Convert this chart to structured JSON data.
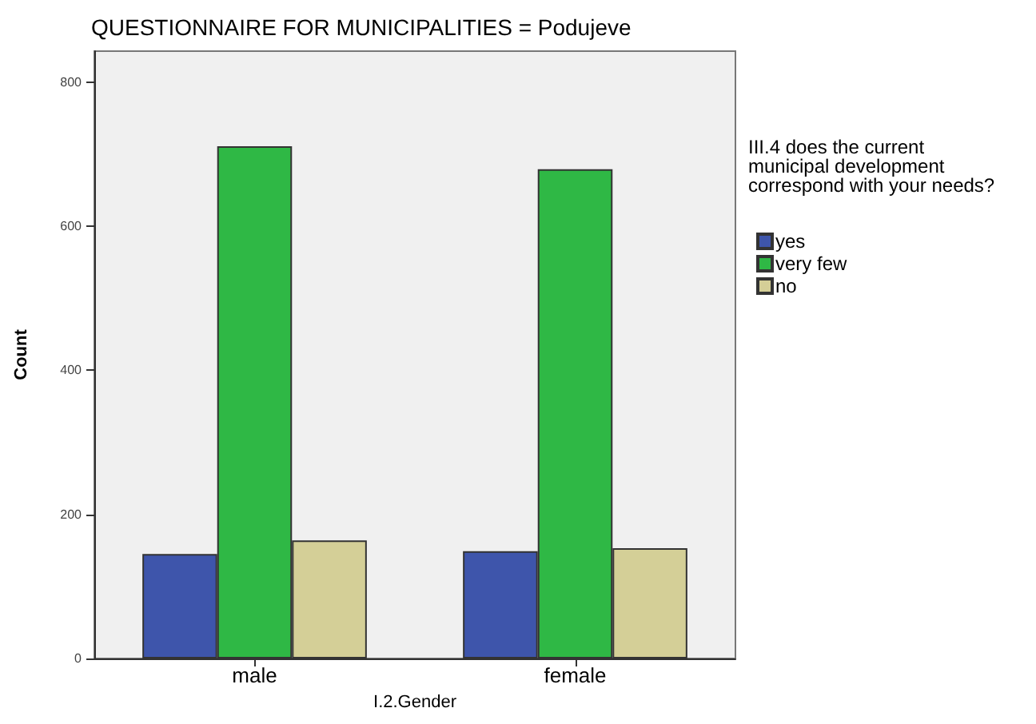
{
  "chart_data": {
    "type": "bar",
    "title": "QUESTIONNAIRE FOR MUNICIPALITIES = Podujeve",
    "xlabel": "I.2.Gender",
    "ylabel": "Count",
    "legend_title": "III.4 does the current\nmunicipal development\ncorrespond with your needs?",
    "categories": [
      "male",
      "female"
    ],
    "series": [
      {
        "name": "yes",
        "color": "#3e55ab",
        "values": [
          145,
          149
        ]
      },
      {
        "name": "very few",
        "color": "#2fb845",
        "values": [
          711,
          679
        ]
      },
      {
        "name": "no",
        "color": "#d4cf97",
        "values": [
          164,
          153
        ]
      }
    ],
    "ylim": [
      0,
      843
    ],
    "yticks": [
      0,
      200,
      400,
      600,
      800
    ],
    "grid": false,
    "legend": "right"
  }
}
